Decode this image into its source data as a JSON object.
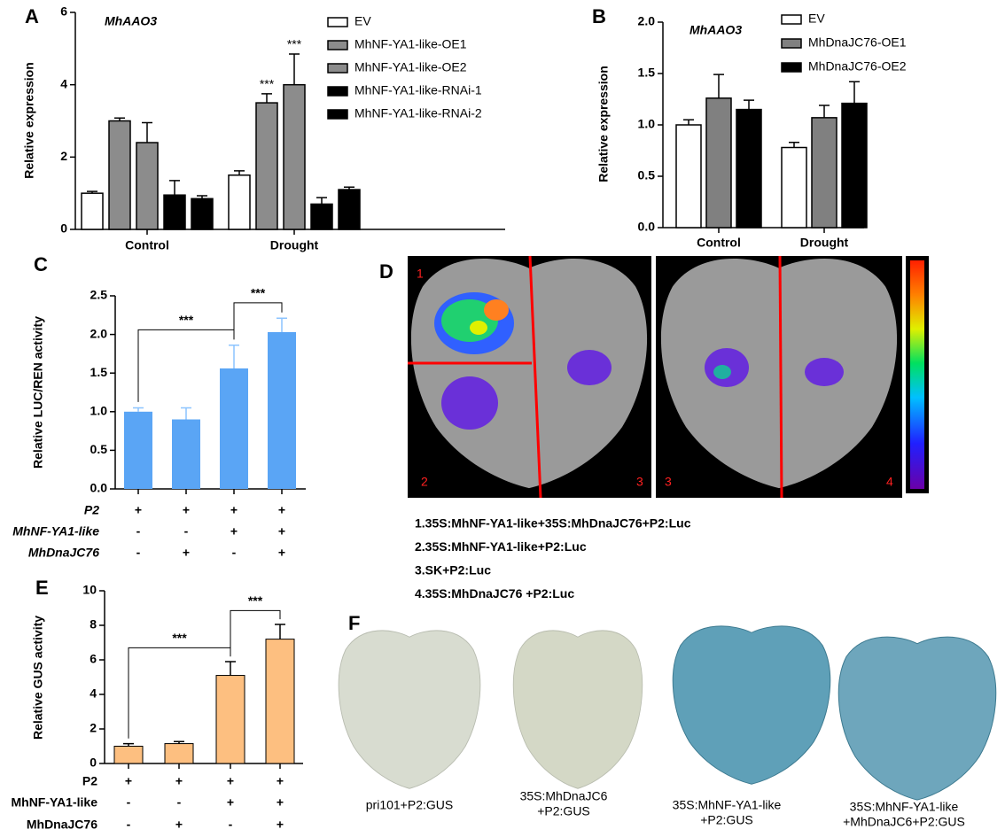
{
  "chart_data": [
    {
      "type": "bar",
      "panel_label": "A",
      "annotation": "MhAAO3",
      "ylabel": "Relative expression",
      "categories": [
        "Control",
        "Drought"
      ],
      "ylim": [
        0,
        6
      ],
      "yticks": [
        0,
        2,
        4,
        6
      ],
      "series": [
        {
          "name": "EV",
          "color": "#ffffff",
          "values": [
            1.0,
            1.5
          ],
          "errors": [
            0.05,
            0.12
          ]
        },
        {
          "name": "MhNF-YA1-like-OE1",
          "color": "#8c8c8c",
          "values": [
            3.0,
            3.5
          ],
          "errors": [
            0.08,
            0.25
          ],
          "significance": [
            null,
            "***"
          ]
        },
        {
          "name": "MhNF-YA1-like-OE2",
          "color": "#8c8c8c",
          "values": [
            2.4,
            4.0
          ],
          "errors": [
            0.55,
            0.85
          ],
          "significance": [
            null,
            "***"
          ]
        },
        {
          "name": "MhNF-YA1-like-RNAi-1",
          "color": "#000000",
          "values": [
            0.95,
            0.7
          ],
          "errors": [
            0.4,
            0.18
          ]
        },
        {
          "name": "MhNF-YA1-like-RNAi-2",
          "color": "#000000",
          "values": [
            0.85,
            1.1
          ],
          "errors": [
            0.08,
            0.07
          ]
        }
      ]
    },
    {
      "type": "bar",
      "panel_label": "B",
      "annotation": "MhAAO3",
      "ylabel": "Relative expression",
      "categories": [
        "Control",
        "Drought"
      ],
      "ylim": [
        0,
        2
      ],
      "yticks": [
        {
          "value": 0,
          "label": "0.0"
        },
        {
          "value": 0.5,
          "label": "0.5"
        },
        {
          "value": 1,
          "label": "1.0"
        },
        {
          "value": 1.5,
          "label": "1.5"
        },
        {
          "value": 2,
          "label": "2.0"
        }
      ],
      "series": [
        {
          "name": "EV",
          "color": "#ffffff",
          "values": [
            1.0,
            0.78
          ],
          "errors": [
            0.05,
            0.05
          ]
        },
        {
          "name": "MhDnaJC76-OE1",
          "color": "#808080",
          "values": [
            1.26,
            1.07
          ],
          "errors": [
            0.23,
            0.12
          ]
        },
        {
          "name": "MhDnaJC76-OE2",
          "color": "#000000",
          "values": [
            1.15,
            1.21
          ],
          "errors": [
            0.09,
            0.21
          ]
        }
      ]
    },
    {
      "type": "bar",
      "panel_label": "C",
      "ylabel": "Relative LUC/REN activity",
      "color": "#5aa5f5",
      "error_color": "#8cc4ff",
      "ylim": [
        0,
        2.5
      ],
      "yticks": [
        {
          "value": 0,
          "label": "0.0"
        },
        {
          "value": 0.5,
          "label": "0.5"
        },
        {
          "value": 1,
          "label": "1.0"
        },
        {
          "value": 1.5,
          "label": "1.5"
        },
        {
          "value": 2,
          "label": "2.0"
        },
        {
          "value": 2.5,
          "label": "2.5"
        }
      ],
      "values": [
        1.0,
        0.9,
        1.56,
        2.03
      ],
      "errors": [
        0.05,
        0.15,
        0.3,
        0.18
      ],
      "brackets": [
        {
          "from": 0,
          "to": 2,
          "label": "***"
        },
        {
          "from": 2,
          "to": 3,
          "label": "***"
        }
      ],
      "conditions": [
        {
          "name": "P2",
          "marks": [
            "+",
            "+",
            "+",
            "+"
          ]
        },
        {
          "name": "MhNF-YA1-like",
          "marks": [
            "-",
            "-",
            "+",
            "+"
          ]
        },
        {
          "name": "MhDnaJC76",
          "marks": [
            "-",
            "+",
            "-",
            "+"
          ]
        }
      ]
    },
    {
      "type": "bar",
      "panel_label": "E",
      "ylabel": "Relative GUS activity",
      "color": "#fdbf80",
      "error_color": "#000000",
      "ylim": [
        0,
        10
      ],
      "yticks": [
        0,
        2,
        4,
        6,
        8,
        10
      ],
      "values": [
        1.0,
        1.15,
        5.1,
        7.2
      ],
      "errors": [
        0.15,
        0.12,
        0.8,
        0.85
      ],
      "brackets": [
        {
          "from": 0,
          "to": 2,
          "label": "***"
        },
        {
          "from": 2,
          "to": 3,
          "label": "***"
        }
      ],
      "conditions": [
        {
          "name": "P2",
          "marks": [
            "+",
            "+",
            "+",
            "+"
          ]
        },
        {
          "name": "MhNF-YA1-like",
          "marks": [
            "-",
            "-",
            "+",
            "+"
          ]
        },
        {
          "name": "MhDnaJC76",
          "marks": [
            "-",
            "+",
            "-",
            "+"
          ]
        }
      ]
    }
  ],
  "panel_d": {
    "panel_label": "D",
    "leaf_numbers": [
      "1",
      "2",
      "3",
      "3",
      "4"
    ],
    "legend": [
      "1.35S:MhNF-YA1-like+35S:MhDnaJC76+P2:Luc",
      "2.35S:MhNF-YA1-like+P2:Luc",
      "3.SK+P2:Luc",
      "4.35S:MhDnaJC76 +P2:Luc"
    ]
  },
  "panel_f": {
    "panel_label": "F",
    "captions": [
      [
        "pri101+P2:GUS"
      ],
      [
        "35S:MhDnaJC6",
        "+P2:GUS"
      ],
      [
        "35S:MhNF-YA1-like",
        "+P2:GUS"
      ],
      [
        "35S:MhNF-YA1-like",
        "+MhDnaJC6+P2:GUS"
      ]
    ]
  }
}
